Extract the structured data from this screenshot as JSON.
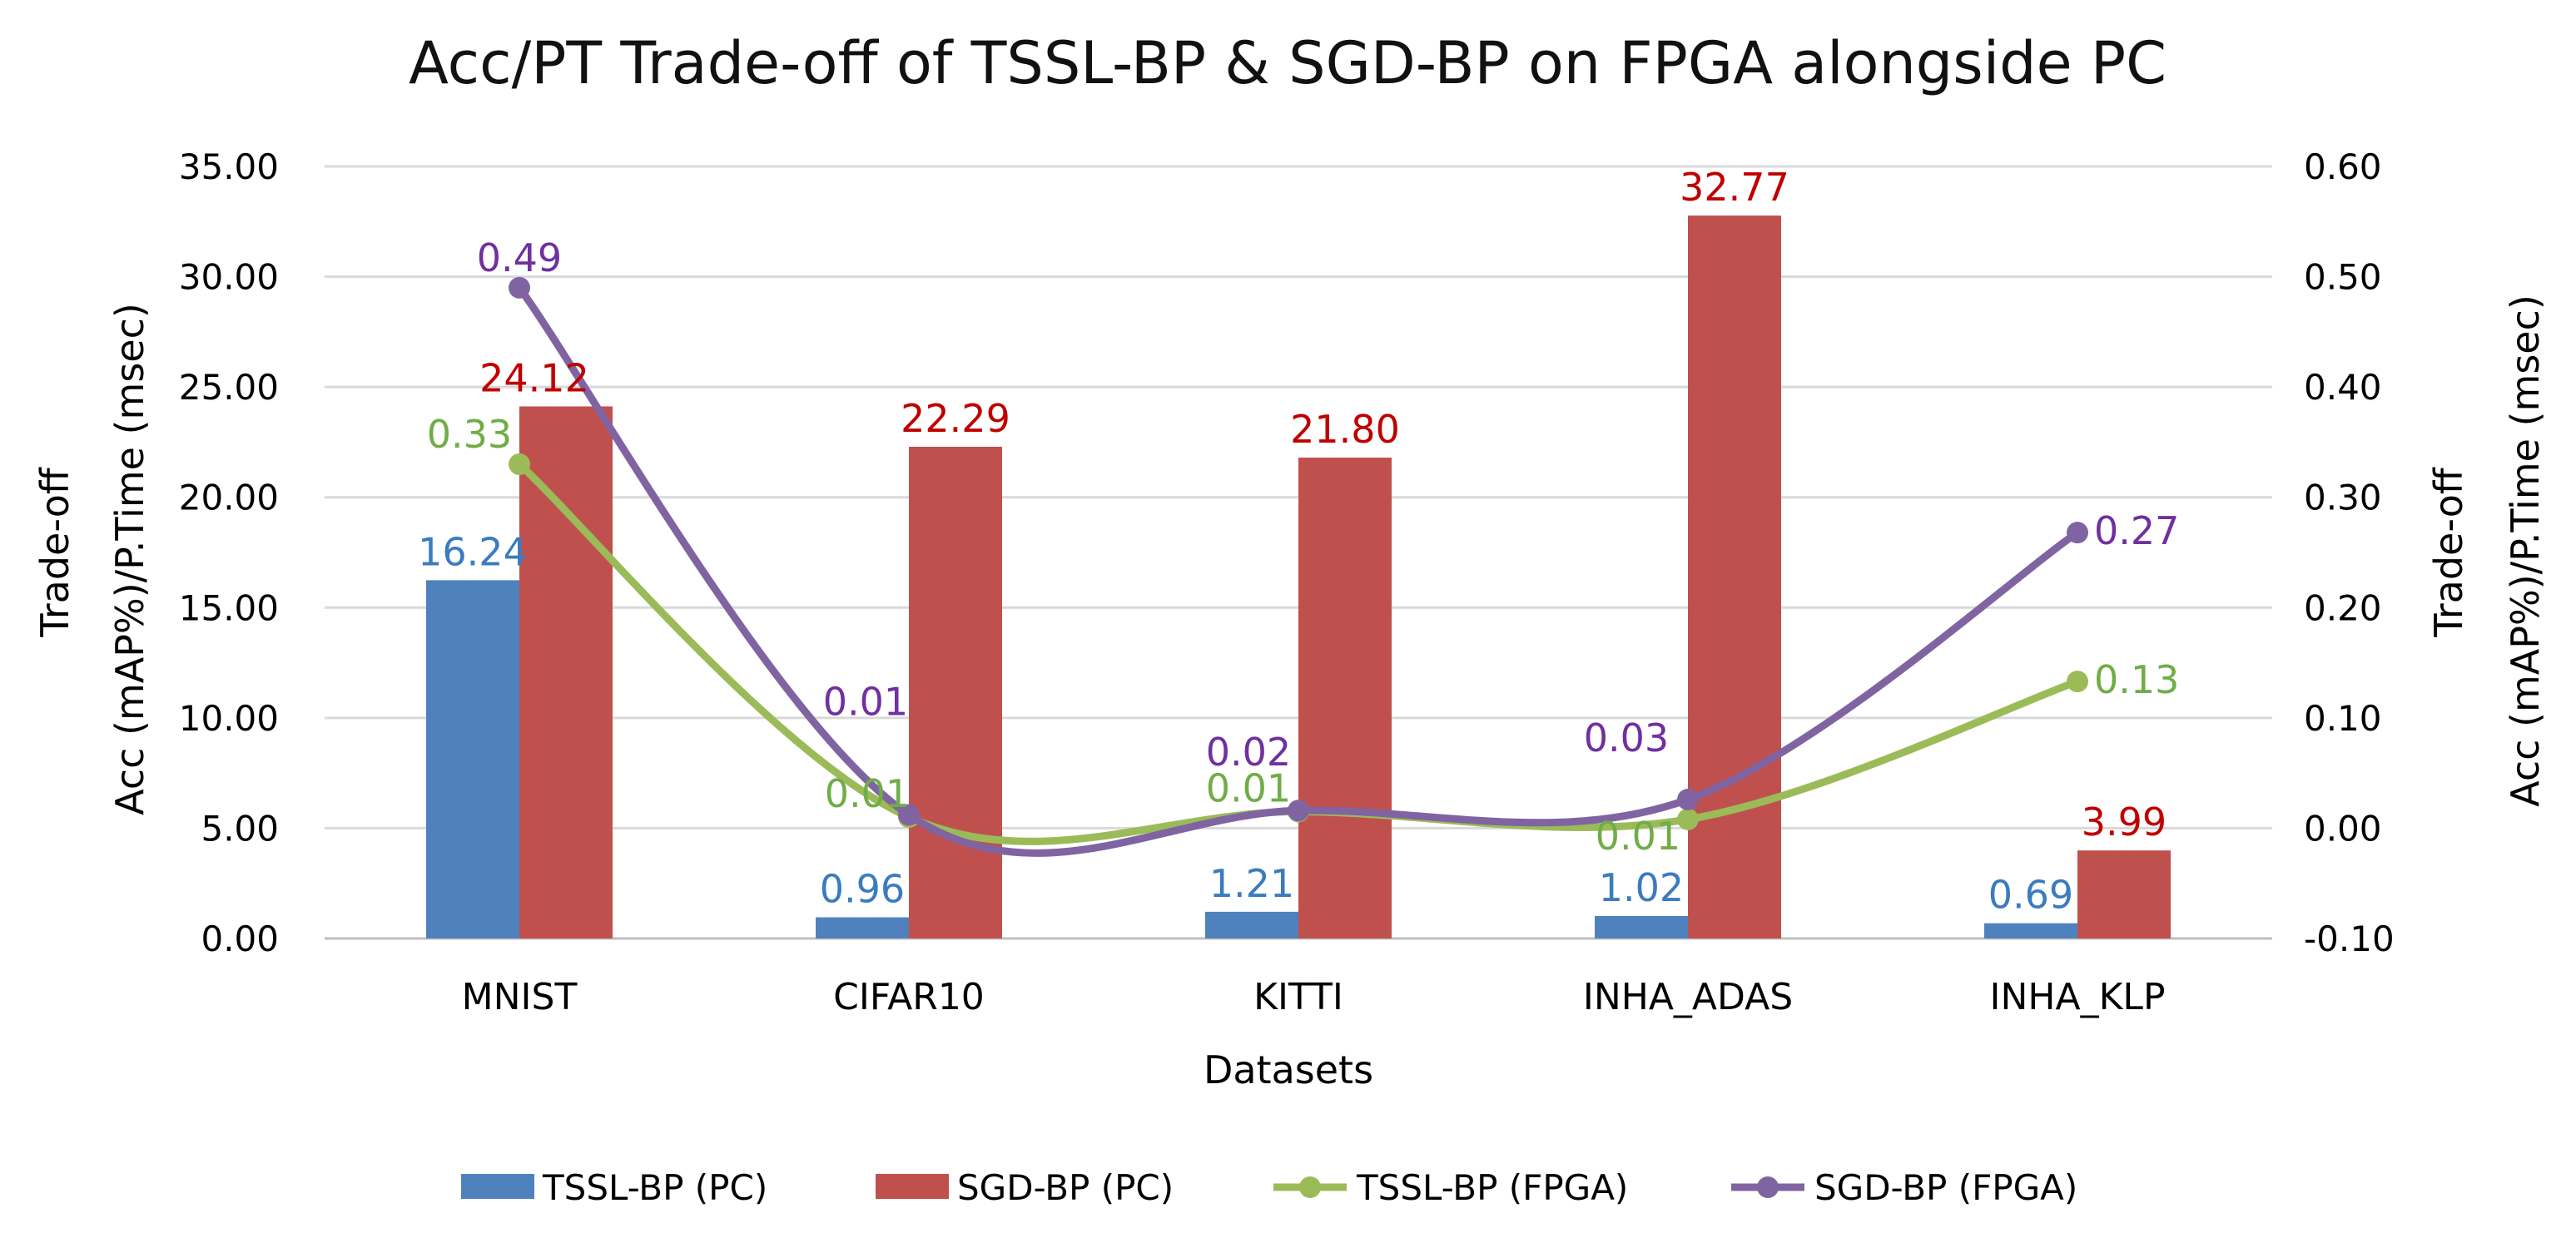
{
  "chart_data": {
    "type": "bar",
    "title": "Acc/PT Trade-off of TSSL-BP & SGD-BP on FPGA alongside PC",
    "xlabel": "Datasets",
    "ylabel": "Trade-off\nAcc (mAP%)/P.Time (msec)",
    "y2label": "Trade-off\nAcc (mAP%)/P.Time (msec)",
    "categories": [
      "MNIST",
      "CIFAR10",
      "KITTI",
      "INHA_ADAS",
      "INHA_KLP"
    ],
    "ylim": [
      0,
      35
    ],
    "y_ticks": [
      "0.00",
      "5.00",
      "10.00",
      "15.00",
      "20.00",
      "25.00",
      "30.00",
      "35.00"
    ],
    "y2lim": [
      -0.1,
      0.6
    ],
    "y2_ticks": [
      "-0.10",
      "0.00",
      "0.10",
      "0.20",
      "0.30",
      "0.40",
      "0.50",
      "0.60"
    ],
    "grid": true,
    "legend_position": "bottom",
    "series": [
      {
        "name": "TSSL-BP (PC)",
        "kind": "bar",
        "axis": "left",
        "color": "#4F81BD",
        "label_color": "#3B7BBF",
        "values": [
          16.24,
          0.96,
          1.21,
          1.02,
          0.69
        ],
        "labels": [
          "16.24",
          "0.96",
          "1.21",
          "1.02",
          "0.69"
        ]
      },
      {
        "name": "SGD-BP (PC)",
        "kind": "bar",
        "axis": "left",
        "color": "#C0504D",
        "label_color": "#C00000",
        "values": [
          24.12,
          22.29,
          21.8,
          32.77,
          3.99
        ],
        "labels": [
          "24.12",
          "22.29",
          "21.80",
          "32.77",
          "3.99"
        ]
      },
      {
        "name": "TSSL-BP (FPGA)",
        "kind": "line",
        "axis": "right",
        "color": "#9BBB59",
        "label_color": "#70AD47",
        "values": [
          0.33,
          0.01,
          0.015,
          0.008,
          0.133
        ],
        "labels": [
          "0.33",
          "0.01",
          "0.01",
          "0.01",
          "0.13"
        ]
      },
      {
        "name": "SGD-BP (FPGA)",
        "kind": "line",
        "axis": "right",
        "color": "#8064A2",
        "label_color": "#7030A0",
        "values": [
          0.49,
          0.012,
          0.016,
          0.026,
          0.268
        ],
        "labels": [
          "0.49",
          "0.01",
          "0.02",
          "0.03",
          "0.27"
        ]
      }
    ]
  }
}
